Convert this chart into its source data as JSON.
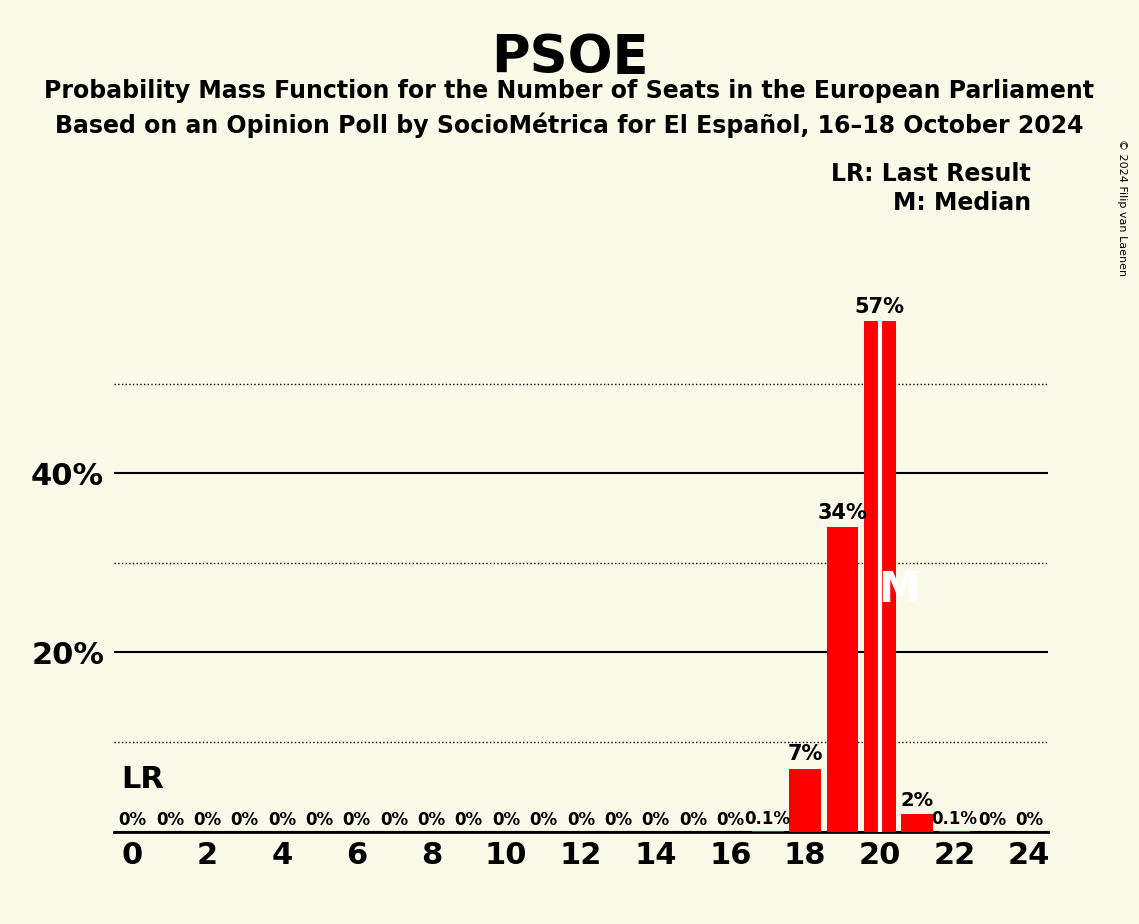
{
  "title": "PSOE",
  "subtitle1": "Probability Mass Function for the Number of Seats in the European Parliament",
  "subtitle2": "Based on an Opinion Poll by SocioMétrica for El Español, 16–18 October 2024",
  "copyright": "© 2024 Filip van Laenen",
  "background_color": "#FAFAE8",
  "bar_color": "#FF0000",
  "seats": [
    0,
    1,
    2,
    3,
    4,
    5,
    6,
    7,
    8,
    9,
    10,
    11,
    12,
    13,
    14,
    15,
    16,
    17,
    18,
    19,
    20,
    21,
    22,
    23,
    24
  ],
  "probabilities": [
    0,
    0,
    0,
    0,
    0,
    0,
    0,
    0,
    0,
    0,
    0,
    0,
    0,
    0,
    0,
    0,
    0,
    0.001,
    0.07,
    0.34,
    0.57,
    0.02,
    0.001,
    0,
    0
  ],
  "bar_labels": [
    "0%",
    "0%",
    "0%",
    "0%",
    "0%",
    "0%",
    "0%",
    "0%",
    "0%",
    "0%",
    "0%",
    "0%",
    "0%",
    "0%",
    "0%",
    "0%",
    "0%",
    "0.1%",
    "7%",
    "34%",
    "57%",
    "2%",
    "0.1%",
    "0%",
    "0%"
  ],
  "last_result": 20,
  "median": 20,
  "lr_label": "LR",
  "median_label": "M",
  "legend_lr": "LR: Last Result",
  "legend_m": "M: Median",
  "ylim": [
    0,
    0.65
  ],
  "solid_yticks": [
    0.0,
    0.2,
    0.4
  ],
  "dotted_yticks": [
    0.1,
    0.3,
    0.5
  ],
  "xlim": [
    -0.5,
    24.5
  ],
  "xticks": [
    0,
    2,
    4,
    6,
    8,
    10,
    12,
    14,
    16,
    18,
    20,
    22,
    24
  ]
}
